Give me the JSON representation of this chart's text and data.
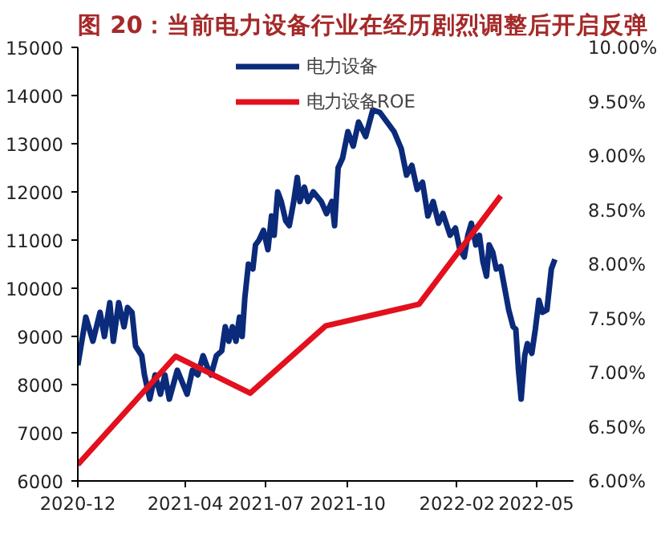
{
  "chart_data": {
    "type": "line",
    "title": "图 20：当前电力设备行业在经历剧烈调整后开启反弹",
    "xlim": [
      "2020-12-01",
      "2022-06-12"
    ],
    "xticks": [
      {
        "value": "2020-12-01",
        "label": "2020-12"
      },
      {
        "value": "2021-04-01",
        "label": "2021-04"
      },
      {
        "value": "2021-07-01",
        "label": "2021-07"
      },
      {
        "value": "2021-10-01",
        "label": "2021-10"
      },
      {
        "value": "2022-02-01",
        "label": "2022-02"
      },
      {
        "value": "2022-05-01",
        "label": "2022-05"
      }
    ],
    "ylim": [
      6000,
      15000
    ],
    "yticks": [
      6000,
      7000,
      8000,
      9000,
      10000,
      11000,
      12000,
      13000,
      14000,
      15000
    ],
    "y2lim": [
      6,
      10
    ],
    "y2ticks": [
      {
        "value": 6,
        "label": "6.00%"
      },
      {
        "value": 6.5,
        "label": "6.50%"
      },
      {
        "value": 7,
        "label": "7.00%"
      },
      {
        "value": 7.5,
        "label": "7.50%"
      },
      {
        "value": 8,
        "label": "8.00%"
      },
      {
        "value": 8.5,
        "label": "8.50%"
      },
      {
        "value": 9,
        "label": "9.00%"
      },
      {
        "value": 9.5,
        "label": "9.50%"
      },
      {
        "value": 10,
        "label": "10.00%"
      }
    ],
    "grid": false,
    "legend": "top",
    "marker": "none",
    "line_style": "solid",
    "series": [
      {
        "name": "电力设备",
        "color": "#0b2a7a",
        "x": [
          "2020-12-01",
          "2020-12-10",
          "2020-12-18",
          "2020-12-26",
          "2020-12-31",
          "2021-01-06",
          "2021-01-10",
          "2021-01-16",
          "2021-01-22",
          "2021-01-26",
          "2021-01-31",
          "2021-02-04",
          "2021-02-11",
          "2021-02-14",
          "2021-02-20",
          "2021-02-26",
          "2021-03-04",
          "2021-03-09",
          "2021-03-14",
          "2021-03-23",
          "2021-04-03",
          "2021-04-09",
          "2021-04-15",
          "2021-04-21",
          "2021-04-27",
          "2021-04-30",
          "2021-05-06",
          "2021-05-12",
          "2021-05-16",
          "2021-05-20",
          "2021-05-24",
          "2021-05-28",
          "2021-06-01",
          "2021-06-04",
          "2021-06-07",
          "2021-06-11",
          "2021-06-16",
          "2021-06-19",
          "2021-06-23",
          "2021-06-28",
          "2021-07-03",
          "2021-07-07",
          "2021-07-10",
          "2021-07-14",
          "2021-07-18",
          "2021-07-23",
          "2021-07-27",
          "2021-08-01",
          "2021-08-05",
          "2021-08-08",
          "2021-08-13",
          "2021-08-17",
          "2021-08-23",
          "2021-09-01",
          "2021-09-07",
          "2021-09-13",
          "2021-09-16",
          "2021-09-20",
          "2021-09-25",
          "2021-10-01",
          "2021-10-07",
          "2021-10-13",
          "2021-10-21",
          "2021-10-29",
          "2021-11-06",
          "2021-11-14",
          "2021-11-22",
          "2021-11-30",
          "2021-12-06",
          "2021-12-12",
          "2021-12-18",
          "2021-12-24",
          "2021-12-30",
          "2022-01-05",
          "2022-01-11",
          "2022-01-16",
          "2022-01-24",
          "2022-01-30",
          "2022-02-04",
          "2022-02-09",
          "2022-02-13",
          "2022-02-17",
          "2022-02-22",
          "2022-02-26",
          "2022-03-02",
          "2022-03-06",
          "2022-03-09",
          "2022-03-13",
          "2022-03-17",
          "2022-03-22",
          "2022-03-27",
          "2022-03-31",
          "2022-04-05",
          "2022-04-08",
          "2022-04-11",
          "2022-04-14",
          "2022-04-18",
          "2022-04-21",
          "2022-04-26",
          "2022-04-30",
          "2022-05-04",
          "2022-05-08",
          "2022-05-13",
          "2022-05-18",
          "2022-05-22"
        ],
        "values": [
          8400,
          9400,
          8900,
          9500,
          9000,
          9700,
          8900,
          9700,
          9200,
          9600,
          9500,
          8800,
          8600,
          8200,
          7700,
          8200,
          7800,
          8200,
          7700,
          8300,
          7800,
          8300,
          8200,
          8600,
          8300,
          8200,
          8600,
          8700,
          9200,
          8900,
          9200,
          8900,
          9400,
          9000,
          9800,
          10500,
          10400,
          10900,
          11000,
          11200,
          10800,
          11500,
          11100,
          12000,
          11800,
          11400,
          11300,
          11800,
          12300,
          11800,
          12100,
          11800,
          12000,
          11800,
          11550,
          11800,
          11300,
          12500,
          12700,
          13250,
          12950,
          13450,
          13150,
          13700,
          13650,
          13450,
          13250,
          12900,
          12350,
          12550,
          12050,
          12200,
          11500,
          11800,
          11350,
          11550,
          11100,
          11250,
          10800,
          10650,
          11100,
          11350,
          10900,
          11100,
          10550,
          10250,
          10900,
          10750,
          10400,
          10450,
          9950,
          9550,
          9200,
          9150,
          8300,
          7700,
          8600,
          8850,
          8650,
          9150,
          9750,
          9500,
          9550,
          10400,
          10600
        ]
      },
      {
        "name": "电力设备ROE",
        "color": "#e3101d",
        "axis": "y2",
        "x": [
          "2020-12-01",
          "2021-03-21",
          "2021-06-13",
          "2021-09-06",
          "2021-12-20",
          "2022-03-22"
        ],
        "values": [
          6.15,
          7.15,
          6.81,
          7.43,
          7.63,
          8.63
        ]
      }
    ]
  }
}
